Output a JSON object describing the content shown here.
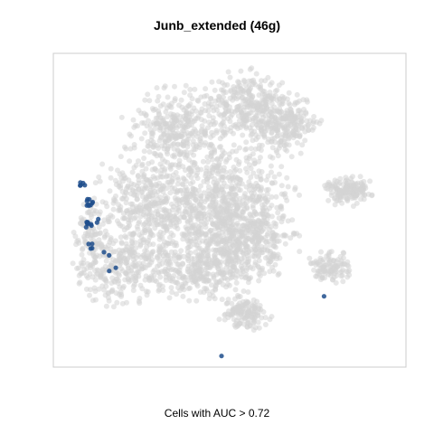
{
  "chart_data": {
    "type": "scatter",
    "title": "Junb_extended (46g)",
    "xlabel": "Cells with AUC > 0.72",
    "ylabel": "",
    "background_color": "#d3d3d3",
    "highlight_color": "#1f4e8c",
    "grid": false,
    "legend": "none",
    "highlighted_cell_groups": [
      {
        "x": -0.9,
        "y": 0.18,
        "count": 5
      },
      {
        "x": -0.86,
        "y": 0.05,
        "count": 9
      },
      {
        "x": -0.87,
        "y": -0.1,
        "count": 8
      },
      {
        "x": -0.85,
        "y": -0.25,
        "count": 4
      },
      {
        "x": -0.8,
        "y": -0.07,
        "count": 2
      },
      {
        "x": -0.76,
        "y": -0.3,
        "count": 2
      },
      {
        "x": -0.72,
        "y": -0.4,
        "count": 2
      },
      {
        "x": 0.58,
        "y": -0.58,
        "count": 1
      },
      {
        "x": -0.05,
        "y": -0.98,
        "count": 1
      }
    ]
  }
}
